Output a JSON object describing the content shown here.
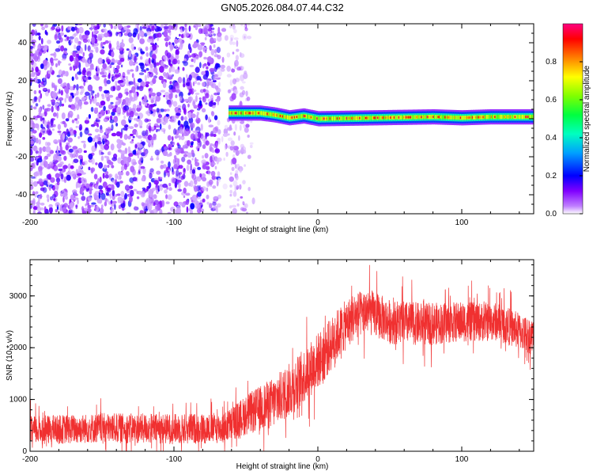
{
  "title": "GN05.2026.084.07.44.C32",
  "chart_data": [
    {
      "type": "heatmap",
      "xlabel": "Height of straight line (km)",
      "ylabel": "Frequency (Hz)",
      "xlim": [
        -200,
        150
      ],
      "ylim": [
        -50,
        50
      ],
      "xticks": [
        -200,
        -100,
        0,
        100
      ],
      "yticks": [
        -40,
        -20,
        0,
        20,
        40
      ],
      "colorbar": {
        "label": "Normalized spectral amplitude",
        "range": [
          0,
          1
        ],
        "ticks": [
          "0.0",
          "0.2",
          "0.4",
          "0.6",
          "0.8"
        ],
        "colors": [
          "#ffffff",
          "#8000ff",
          "#0000ff",
          "#00c0ff",
          "#00ff80",
          "#80ff00",
          "#ffff00",
          "#ff8000",
          "#ff0000",
          "#ff0080"
        ]
      },
      "noise_region": {
        "x": [
          -200,
          -58
        ],
        "freq": [
          -50,
          50
        ],
        "amplitude": [
          0.05,
          0.35
        ]
      },
      "signal_band": {
        "x": [
          -62,
          150
        ],
        "center_freq": [
          {
            "x": -62,
            "f": 3
          },
          {
            "x": -40,
            "f": 3
          },
          {
            "x": -30,
            "f": 2
          },
          {
            "x": -20,
            "f": 0.5
          },
          {
            "x": -10,
            "f": 1.5
          },
          {
            "x": 0,
            "f": 0
          },
          {
            "x": 40,
            "f": 0.5
          },
          {
            "x": 80,
            "f": 1
          },
          {
            "x": 100,
            "f": 0.5
          },
          {
            "x": 120,
            "f": 1
          },
          {
            "x": 150,
            "f": 1
          }
        ],
        "half_width_hz": 2.5
      }
    },
    {
      "type": "line",
      "xlabel": "Height of straight line (km)",
      "ylabel": "SNR (10 * v/v)",
      "xlim": [
        -200,
        150
      ],
      "ylim": [
        0,
        3700
      ],
      "xticks": [
        -200,
        -100,
        0,
        100
      ],
      "yticks": [
        0,
        1000,
        2000,
        3000
      ],
      "color": "#f03030",
      "trend": [
        {
          "x": -200,
          "y": 400
        },
        {
          "x": -150,
          "y": 450
        },
        {
          "x": -100,
          "y": 430
        },
        {
          "x": -65,
          "y": 450
        },
        {
          "x": -50,
          "y": 700
        },
        {
          "x": -30,
          "y": 950
        },
        {
          "x": -15,
          "y": 1300
        },
        {
          "x": -5,
          "y": 1600
        },
        {
          "x": 5,
          "y": 1900
        },
        {
          "x": 15,
          "y": 2300
        },
        {
          "x": 25,
          "y": 2600
        },
        {
          "x": 35,
          "y": 2700
        },
        {
          "x": 50,
          "y": 2500
        },
        {
          "x": 75,
          "y": 2450
        },
        {
          "x": 100,
          "y": 2500
        },
        {
          "x": 125,
          "y": 2500
        },
        {
          "x": 150,
          "y": 2200
        }
      ],
      "noise_amplitude": [
        {
          "x": -200,
          "a": 280
        },
        {
          "x": -65,
          "a": 300
        },
        {
          "x": -30,
          "a": 500
        },
        {
          "x": 0,
          "a": 550
        },
        {
          "x": 30,
          "a": 450
        },
        {
          "x": 150,
          "a": 350
        }
      ]
    }
  ]
}
